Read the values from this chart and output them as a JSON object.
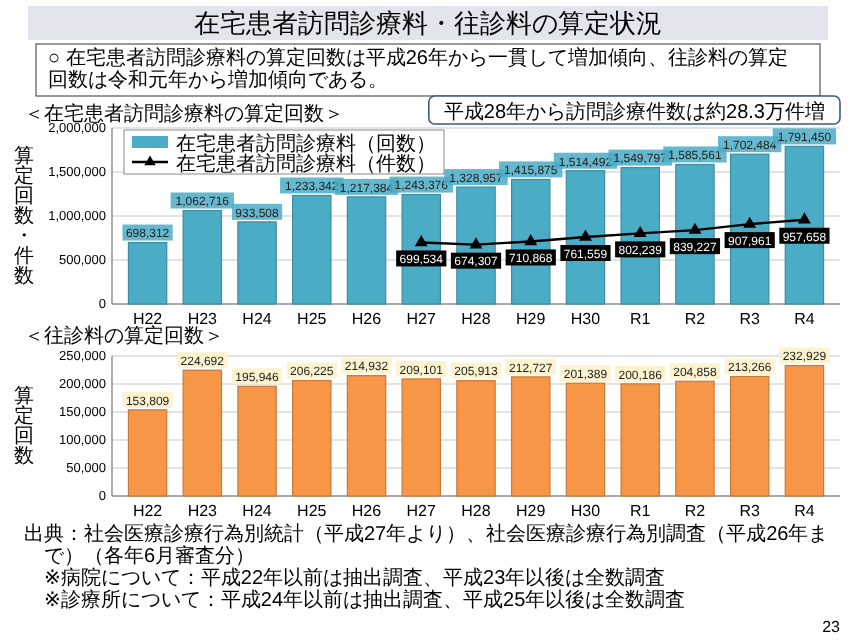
{
  "chart_data": [
    {
      "type": "bar",
      "title": "在宅患者訪問診療料・往診料の算定状況",
      "subtitle": "○ 在宅患者訪問診療料の算定回数は平成26年から一貫して増加傾向、往診料の算定回数は令和元年から増加傾向である。",
      "ylabel": "算定回数・件数",
      "categories": [
        "H22",
        "H23",
        "H24",
        "H25",
        "H26",
        "H27",
        "H28",
        "H29",
        "H30",
        "R1",
        "R2",
        "R3",
        "R4"
      ],
      "series": [
        {
          "name": "在宅患者訪問診療料（回数）",
          "color": "#4bacc6",
          "values": [
            698312,
            1062716,
            933508,
            1233342,
            1217384,
            1243376,
            1328957,
            1415875,
            1514492,
            1549797,
            1585561,
            1702484,
            1791450
          ],
          "value_labels": [
            "698,312",
            "1,062,716",
            "933,508",
            "1,233,342",
            "1,217,384",
            "1,243,376",
            "1,328,957",
            "1,415,875",
            "1,514,492",
            "1,549,797",
            "1,585,561",
            "1,702,484",
            "1,791,450"
          ]
        },
        {
          "name": "在宅患者訪問診療料（件数）",
          "type": "line",
          "color": "#000000",
          "values": [
            null,
            null,
            null,
            null,
            null,
            699534,
            674307,
            710868,
            761559,
            802239,
            839227,
            907961,
            957658
          ],
          "value_labels": [
            null,
            null,
            null,
            null,
            null,
            "699,534",
            "674,307",
            "710,868",
            "761,559",
            "802,239",
            "839,227",
            "907,961",
            "957,658"
          ]
        }
      ],
      "ylim": [
        0,
        2000000
      ],
      "yticks": [
        {
          "value": 0,
          "label": "0"
        },
        {
          "value": 500000,
          "label": "500,000"
        },
        {
          "value": 1000000,
          "label": "1,000,000"
        },
        {
          "value": 1500000,
          "label": "1,500,000"
        },
        {
          "value": 2000000,
          "label": "2,000,000"
        }
      ],
      "grid": "y",
      "legend": "top left",
      "marker": "triangle",
      "annotations": [
        "＜在宅患者訪問診療料の算定回数＞",
        "平成28年から訪問診療件数は約28.3万件増"
      ]
    },
    {
      "type": "bar",
      "title": "＜往診料の算定回数＞",
      "ylabel": "算定回数",
      "categories": [
        "H22",
        "H23",
        "H24",
        "H25",
        "H26",
        "H27",
        "H28",
        "H29",
        "H30",
        "R1",
        "R2",
        "R3",
        "R4"
      ],
      "color": "#f79646",
      "values": [
        153809,
        224692,
        195946,
        206225,
        214932,
        209101,
        205913,
        212727,
        201389,
        200186,
        204858,
        213266,
        232929
      ],
      "value_labels": [
        "153,809",
        "224,692",
        "195,946",
        "206,225",
        "214,932",
        "209,101",
        "205,913",
        "212,727",
        "201,389",
        "200,186",
        "204,858",
        "213,266",
        "232,929"
      ],
      "ylim": [
        0,
        250000
      ],
      "yticks": [
        {
          "value": 0,
          "label": "0"
        },
        {
          "value": 50000,
          "label": "50,000"
        },
        {
          "value": 100000,
          "label": "100,000"
        },
        {
          "value": 150000,
          "label": "150,000"
        },
        {
          "value": 200000,
          "label": "200,000"
        },
        {
          "value": 250000,
          "label": "250,000"
        }
      ],
      "grid": "y",
      "annotations": [
        "出典：社会医療診療行為別統計（平成27年より）、社会医療診療行為別調査（平成26年まで）（各年6月審査分）",
        "※病院について：平成22年以前は抽出調査、平成23年以後は全数調査",
        "※診療所について：平成24年以前は抽出調査、平成25年以後は全数調査",
        "23"
      ]
    }
  ]
}
